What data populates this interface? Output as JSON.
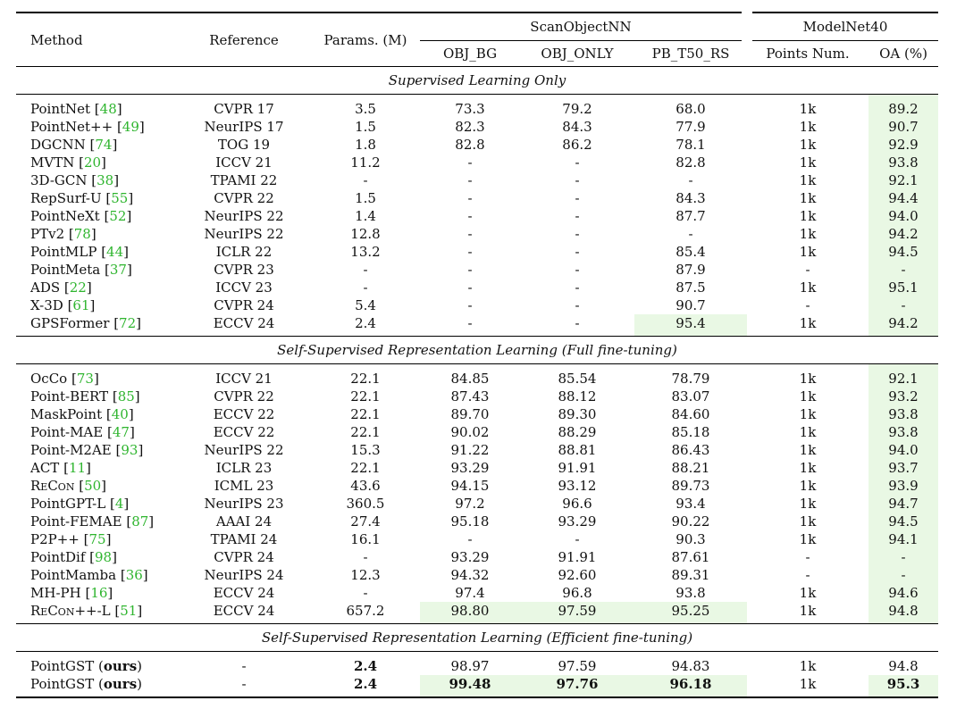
{
  "headers": {
    "method": "Method",
    "reference": "Reference",
    "params": "Params. (M)",
    "scanobjectnn": "ScanObjectNN",
    "modelnet40": "ModelNet40",
    "obj_bg": "OBJ_BG",
    "obj_only": "OBJ_ONLY",
    "pb_t50_rs": "PB_T50_RS",
    "points_num": "Points Num.",
    "oa": "OA (%)"
  },
  "sections": {
    "supervised": "Supervised Learning Only",
    "ssl_full": "Self-Supervised Representation Learning (Full fine-tuning)",
    "ssl_efficient": "Self-Supervised Representation Learning (Efficient fine-tuning)"
  },
  "colors": {
    "citation": "#2fb52f",
    "highlight": "#e9f8e4"
  },
  "supervised_rows": [
    {
      "method": "PointNet",
      "cite": "48",
      "ref": "CVPR 17",
      "params": "3.5",
      "obj_bg": "73.3",
      "obj_only": "79.2",
      "pb": "68.0",
      "points": "1k",
      "oa": "89.2"
    },
    {
      "method": "PointNet++",
      "cite": "49",
      "ref": "NeurIPS 17",
      "params": "1.5",
      "obj_bg": "82.3",
      "obj_only": "84.3",
      "pb": "77.9",
      "points": "1k",
      "oa": "90.7"
    },
    {
      "method": "DGCNN",
      "cite": "74",
      "ref": "TOG 19",
      "params": "1.8",
      "obj_bg": "82.8",
      "obj_only": "86.2",
      "pb": "78.1",
      "points": "1k",
      "oa": "92.9"
    },
    {
      "method": "MVTN",
      "cite": "20",
      "ref": "ICCV 21",
      "params": "11.2",
      "obj_bg": "-",
      "obj_only": "-",
      "pb": "82.8",
      "points": "1k",
      "oa": "93.8"
    },
    {
      "method": "3D-GCN",
      "cite": "38",
      "ref": "TPAMI 22",
      "params": "-",
      "obj_bg": "-",
      "obj_only": "-",
      "pb": "-",
      "points": "1k",
      "oa": "92.1"
    },
    {
      "method": "RepSurf-U",
      "cite": "55",
      "ref": "CVPR 22",
      "params": "1.5",
      "obj_bg": "-",
      "obj_only": "-",
      "pb": "84.3",
      "points": "1k",
      "oa": "94.4"
    },
    {
      "method": "PointNeXt",
      "cite": "52",
      "ref": "NeurIPS 22",
      "params": "1.4",
      "obj_bg": "-",
      "obj_only": "-",
      "pb": "87.7",
      "points": "1k",
      "oa": "94.0"
    },
    {
      "method": "PTv2",
      "cite": "78",
      "ref": "NeurIPS 22",
      "params": "12.8",
      "obj_bg": "-",
      "obj_only": "-",
      "pb": "-",
      "points": "1k",
      "oa": "94.2"
    },
    {
      "method": "PointMLP",
      "cite": "44",
      "ref": "ICLR 22",
      "params": "13.2",
      "obj_bg": "-",
      "obj_only": "-",
      "pb": "85.4",
      "points": "1k",
      "oa": "94.5"
    },
    {
      "method": "PointMeta",
      "cite": "37",
      "ref": "CVPR 23",
      "params": "-",
      "obj_bg": "-",
      "obj_only": "-",
      "pb": "87.9",
      "points": "-",
      "oa": "-"
    },
    {
      "method": "ADS",
      "cite": "22",
      "ref": "ICCV 23",
      "params": "-",
      "obj_bg": "-",
      "obj_only": "-",
      "pb": "87.5",
      "points": "1k",
      "oa": "95.1"
    },
    {
      "method": "X-3D",
      "cite": "61",
      "ref": "CVPR 24",
      "params": "5.4",
      "obj_bg": "-",
      "obj_only": "-",
      "pb": "90.7",
      "points": "-",
      "oa": "-"
    },
    {
      "method": "GPSFormer",
      "cite": "72",
      "ref": "ECCV 24",
      "params": "2.4",
      "obj_bg": "-",
      "obj_only": "-",
      "pb": "95.4",
      "points": "1k",
      "oa": "94.2"
    }
  ],
  "ssl_full_rows": [
    {
      "method": "OcCo",
      "cite": "73",
      "ref": "ICCV 21",
      "params": "22.1",
      "obj_bg": "84.85",
      "obj_only": "85.54",
      "pb": "78.79",
      "points": "1k",
      "oa": "92.1"
    },
    {
      "method": "Point-BERT",
      "cite": "85",
      "ref": "CVPR 22",
      "params": "22.1",
      "obj_bg": "87.43",
      "obj_only": "88.12",
      "pb": "83.07",
      "points": "1k",
      "oa": "93.2"
    },
    {
      "method": "MaskPoint",
      "cite": "40",
      "ref": "ECCV 22",
      "params": "22.1",
      "obj_bg": "89.70",
      "obj_only": "89.30",
      "pb": "84.60",
      "points": "1k",
      "oa": "93.8"
    },
    {
      "method": "Point-MAE",
      "cite": "47",
      "ref": "ECCV 22",
      "params": "22.1",
      "obj_bg": "90.02",
      "obj_only": "88.29",
      "pb": "85.18",
      "points": "1k",
      "oa": "93.8"
    },
    {
      "method": "Point-M2AE",
      "cite": "93",
      "ref": "NeurIPS 22",
      "params": "15.3",
      "obj_bg": "91.22",
      "obj_only": "88.81",
      "pb": "86.43",
      "points": "1k",
      "oa": "94.0"
    },
    {
      "method": "ACT",
      "cite": "11",
      "ref": "ICLR 23",
      "params": "22.1",
      "obj_bg": "93.29",
      "obj_only": "91.91",
      "pb": "88.21",
      "points": "1k",
      "oa": "93.7"
    },
    {
      "method": "ReCon",
      "cite": "50",
      "ref": "ICML 23",
      "params": "43.6",
      "obj_bg": "94.15",
      "obj_only": "93.12",
      "pb": "89.73",
      "points": "1k",
      "oa": "93.9"
    },
    {
      "method": "PointGPT-L",
      "cite": "4",
      "ref": "NeurIPS 23",
      "params": "360.5",
      "obj_bg": "97.2",
      "obj_only": "96.6",
      "pb": "93.4",
      "points": "1k",
      "oa": "94.7"
    },
    {
      "method": "Point-FEMAE",
      "cite": "87",
      "ref": "AAAI 24",
      "params": "27.4",
      "obj_bg": "95.18",
      "obj_only": "93.29",
      "pb": "90.22",
      "points": "1k",
      "oa": "94.5"
    },
    {
      "method": "P2P++",
      "cite": "75",
      "ref": "TPAMI 24",
      "params": "16.1",
      "obj_bg": "-",
      "obj_only": "-",
      "pb": "90.3",
      "points": "1k",
      "oa": "94.1"
    },
    {
      "method": "PointDif",
      "cite": "98",
      "ref": "CVPR 24",
      "params": "-",
      "obj_bg": "93.29",
      "obj_only": "91.91",
      "pb": "87.61",
      "points": "-",
      "oa": "-"
    },
    {
      "method": "PointMamba",
      "cite": "36",
      "ref": "NeurIPS 24",
      "params": "12.3",
      "obj_bg": "94.32",
      "obj_only": "92.60",
      "pb": "89.31",
      "points": "-",
      "oa": "-"
    },
    {
      "method": "MH-PH",
      "cite": "16",
      "ref": "ECCV 24",
      "params": "-",
      "obj_bg": "97.4",
      "obj_only": "96.8",
      "pb": "93.8",
      "points": "1k",
      "oa": "94.6"
    },
    {
      "method": "ReCon++-L",
      "cite": "51",
      "ref": "ECCV 24",
      "params": "657.2",
      "obj_bg": "98.80",
      "obj_only": "97.59",
      "pb": "95.25",
      "points": "1k",
      "oa": "94.8"
    }
  ],
  "ssl_eff_rows": [
    {
      "method": "PointGST",
      "tag": "ours",
      "ref": "-",
      "params": "2.4",
      "obj_bg": "98.97",
      "obj_only": "97.59",
      "pb": "94.83",
      "points": "1k",
      "oa": "94.8"
    },
    {
      "method": "PointGST",
      "tag": "ours",
      "ref": "-",
      "params": "2.4",
      "obj_bg": "99.48",
      "obj_only": "97.76",
      "pb": "96.18",
      "points": "1k",
      "oa": "95.3"
    }
  ]
}
